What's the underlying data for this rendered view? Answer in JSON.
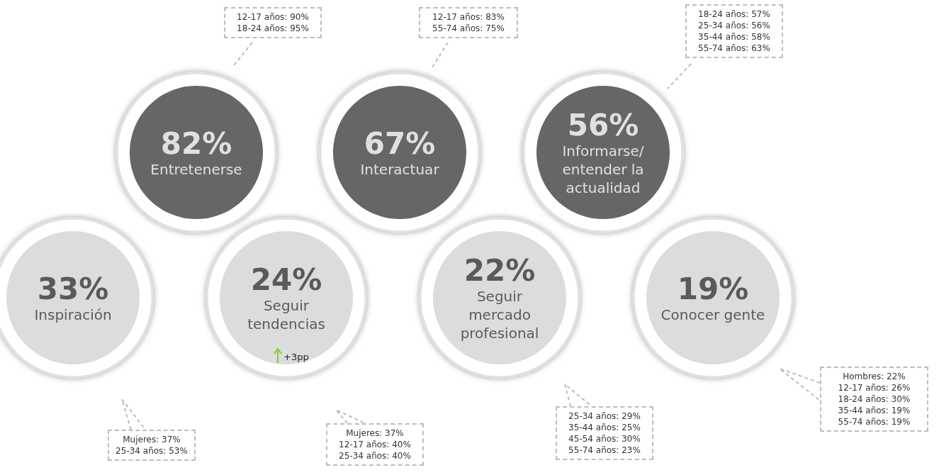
{
  "chart_data": {
    "type": "other",
    "categories": [
      "Entretenerse",
      "Interactuar",
      "Informarse/ entender la actualidad",
      "Inspiración",
      "Seguir tendencias",
      "Seguir mercado profesional",
      "Conocer gente"
    ],
    "values": [
      82,
      67,
      56,
      33,
      24,
      22,
      19
    ],
    "value_labels": [
      "82%",
      "67%",
      "56%",
      "33%",
      "24%",
      "22%",
      "19%"
    ],
    "colors": [
      "#404040",
      "#404040",
      "#404040",
      "#d3d3d3",
      "#d3d3d3",
      "#d3d3d3",
      "#d3d3d3"
    ],
    "annotations": [
      {
        "text": "12-17 años: 90%\n18-24 años: 95%",
        "x": "Entretenerse"
      },
      {
        "text": "12-17 años: 83%\n55-74 años: 75%",
        "x": "Interactuar"
      },
      {
        "text": "18-24 años: 57%\n25-34 años: 56%\n35-44 años: 58%\n55-74 años: 63%",
        "x": "Informarse/ entender la actualidad"
      },
      {
        "text": "Mujeres: 37%\n25-34 años: 53%",
        "x": "Inspiración"
      },
      {
        "text": "Mujeres: 37%\n12-17 años: 40%\n25-34 años: 40%",
        "x": "Seguir tendencias"
      },
      {
        "text": "25-34 años: 29%\n35-44 años: 25%\n45-54 años: 30%\n55-74 años: 23%",
        "x": "Seguir mercado profesional"
      },
      {
        "text": "Hombres: 22%\n12-17 años: 26%\n18-24 años: 30%\n35-44 años: 19%\n55-74 años: 19%",
        "x": "Conocer gente"
      },
      {
        "text": "+3pp",
        "x": "Seguir tendencias"
      }
    ]
  }
}
